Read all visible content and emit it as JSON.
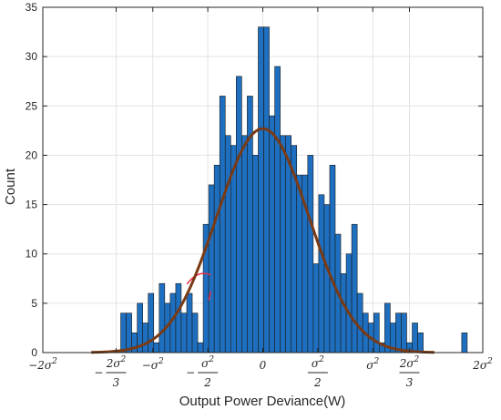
{
  "chart_data": {
    "type": "bar",
    "title": "",
    "xlabel": "Output Power Deviance(W)",
    "ylabel": "Count",
    "xlim": [
      -1.0,
      1.0
    ],
    "ylim": [
      0,
      35
    ],
    "grid": true,
    "x_unit_note": "sigma^2 units",
    "y_ticks": [
      0,
      5,
      10,
      15,
      20,
      25,
      30,
      35
    ],
    "x_ticks": [
      {
        "value": -1.0,
        "label_parts": [
          "−2σ",
          "2"
        ],
        "type": "inline"
      },
      {
        "value": -0.6667,
        "label_parts": [
          "−",
          "2σ",
          "2",
          "3"
        ],
        "type": "frac"
      },
      {
        "value": -0.5,
        "label_parts": [
          "−σ",
          "2"
        ],
        "type": "inline"
      },
      {
        "value": -0.25,
        "label_parts": [
          "−",
          "σ",
          "2",
          "2"
        ],
        "type": "frac"
      },
      {
        "value": 0.0,
        "label_parts": [
          "0"
        ],
        "type": "plain"
      },
      {
        "value": 0.25,
        "label_parts": [
          "",
          "σ",
          "2",
          "2"
        ],
        "type": "frac"
      },
      {
        "value": 0.5,
        "label_parts": [
          "σ",
          "2"
        ],
        "type": "inline"
      },
      {
        "value": 0.6667,
        "label_parts": [
          "",
          "2σ",
          "2",
          "3"
        ],
        "type": "frac"
      },
      {
        "value": 1.0,
        "label_parts": [
          "2σ",
          "2"
        ],
        "type": "inline"
      }
    ],
    "bin_start": -0.6458,
    "bin_width": 0.025,
    "values": [
      4,
      4,
      2,
      5,
      3,
      6,
      1,
      7,
      5,
      6,
      7,
      4,
      6,
      4,
      1,
      13,
      17,
      19,
      26,
      22,
      21,
      28,
      22,
      26,
      20,
      33,
      33,
      24,
      29,
      22,
      22,
      21,
      18,
      18,
      20,
      9,
      16,
      15,
      19,
      12,
      8,
      10,
      13,
      6,
      4,
      3,
      4,
      1,
      5,
      3,
      4,
      4,
      1,
      3,
      2,
      0,
      0,
      0,
      0,
      0,
      0,
      0,
      2
    ],
    "bar_color": "#1e6fbf",
    "fit_curve": {
      "type": "normal",
      "mean": 0.0,
      "sigma": 0.21,
      "peak": 22.7,
      "x_range": [
        -0.78,
        0.78
      ],
      "color": "#7a3a14"
    },
    "annotations": [
      {
        "type": "red-marker",
        "color": "#e8304a"
      }
    ]
  }
}
